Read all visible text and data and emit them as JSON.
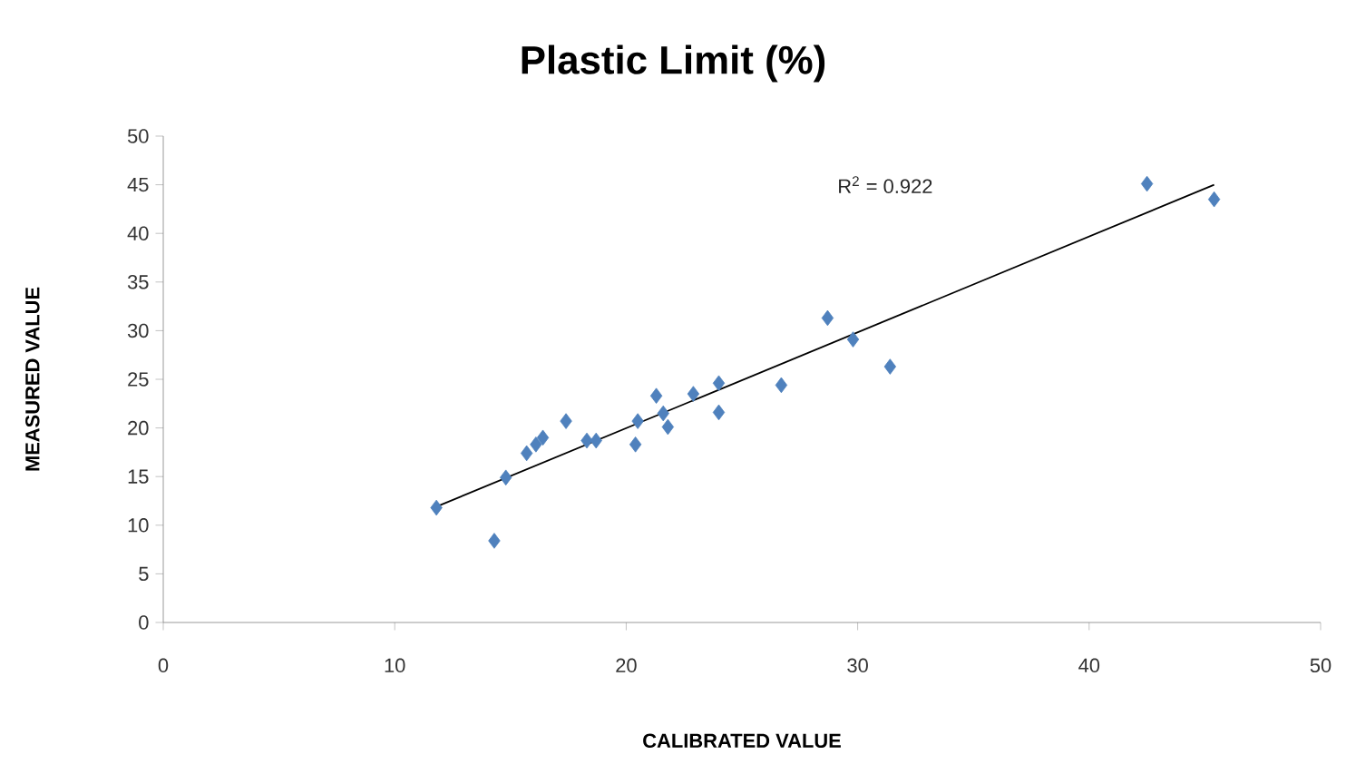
{
  "chart_data": {
    "type": "scatter",
    "title": "Plastic Limit (%)",
    "xlabel": "CALIBRATED VALUE",
    "ylabel": "MEASURED VALUE",
    "annotations": [
      "R$^{2}$ = 0.922"
    ],
    "xlim": [
      0,
      50
    ],
    "ylim": [
      0,
      50
    ],
    "xticks": [
      0,
      10,
      20,
      30,
      40,
      50
    ],
    "yticks": [
      0,
      5,
      10,
      15,
      20,
      25,
      30,
      35,
      40,
      45,
      50
    ],
    "grid": false,
    "marker": "diamond",
    "series": [
      {
        "color": "#4f81bd",
        "x": [
          11.8,
          14.3,
          14.8,
          15.7,
          16.1,
          16.4,
          17.4,
          18.3,
          18.7,
          20.4,
          20.5,
          21.3,
          21.6,
          21.8,
          22.9,
          24.0,
          24.0,
          26.7,
          28.7,
          29.8,
          31.4,
          42.5,
          45.4
        ],
        "values": [
          11.8,
          8.4,
          14.9,
          17.4,
          18.3,
          19.0,
          20.7,
          18.7,
          18.7,
          18.3,
          20.7,
          23.3,
          21.5,
          20.1,
          23.5,
          24.6,
          21.6,
          24.4,
          31.3,
          29.1,
          26.3,
          45.1,
          43.5
        ]
      },
      {
        "type": "line",
        "color": "#000000",
        "marker": "none",
        "x": [
          11.8,
          45.4
        ],
        "values": [
          11.9,
          45.0
        ]
      }
    ]
  }
}
